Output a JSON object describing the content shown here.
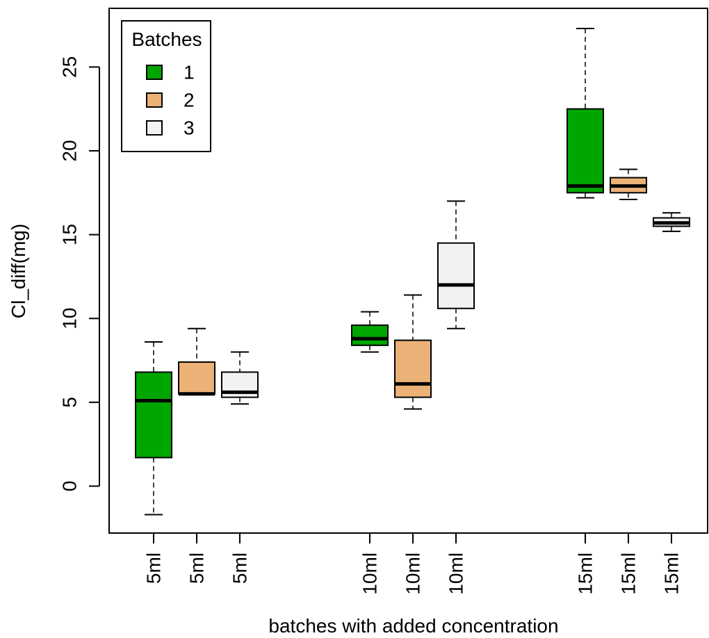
{
  "chart_data": {
    "type": "boxplot",
    "title": "",
    "xlabel": "batches with added concentration",
    "ylabel": "Cl_diff(mg)",
    "ylim": [
      -2.8,
      28.5
    ],
    "yticks": [
      0,
      5,
      10,
      15,
      20,
      25
    ],
    "grid": false,
    "legend": {
      "title": "Batches",
      "placement": "top-left",
      "entries": [
        {
          "label": "1",
          "color": "#00A600"
        },
        {
          "label": "2",
          "color": "#ECB176"
        },
        {
          "label": "3",
          "color": "#F2F2F2"
        }
      ]
    },
    "boxes": [
      {
        "category": "5ml",
        "batch": "1",
        "color": "#00A600",
        "min": -1.7,
        "q1": 1.7,
        "median": 5.1,
        "q3": 6.8,
        "max": 8.6
      },
      {
        "category": "5ml",
        "batch": "2",
        "color": "#ECB176",
        "min": 5.5,
        "q1": 5.5,
        "median": 5.5,
        "q3": 7.4,
        "max": 9.4
      },
      {
        "category": "5ml",
        "batch": "3",
        "color": "#F2F2F2",
        "min": 4.9,
        "q1": 5.3,
        "median": 5.6,
        "q3": 6.8,
        "max": 8.0
      },
      {
        "category": "10ml",
        "batch": "1",
        "color": "#00A600",
        "min": 8.0,
        "q1": 8.4,
        "median": 8.8,
        "q3": 9.6,
        "max": 10.4
      },
      {
        "category": "10ml",
        "batch": "2",
        "color": "#ECB176",
        "min": 4.6,
        "q1": 5.3,
        "median": 6.1,
        "q3": 8.7,
        "max": 11.4
      },
      {
        "category": "10ml",
        "batch": "3",
        "color": "#F2F2F2",
        "min": 9.4,
        "q1": 10.6,
        "median": 12.0,
        "q3": 14.5,
        "max": 17.0
      },
      {
        "category": "15ml",
        "batch": "1",
        "color": "#00A600",
        "min": 17.2,
        "q1": 17.5,
        "median": 17.9,
        "q3": 22.5,
        "max": 27.3
      },
      {
        "category": "15ml",
        "batch": "2",
        "color": "#ECB176",
        "min": 17.1,
        "q1": 17.5,
        "median": 17.9,
        "q3": 18.4,
        "max": 18.9
      },
      {
        "category": "15ml",
        "batch": "3",
        "color": "#F2F2F2",
        "min": 15.2,
        "q1": 15.5,
        "median": 15.7,
        "q3": 16.0,
        "max": 16.3
      }
    ]
  }
}
